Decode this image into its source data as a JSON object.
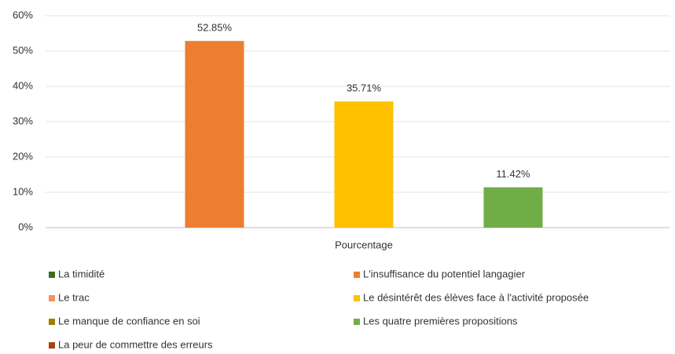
{
  "chart_data": {
    "type": "bar",
    "categories": [
      "Pourcentage"
    ],
    "series": [
      {
        "name": "La timidité",
        "color": "#3b6b22",
        "values": [
          0
        ],
        "value_labels": [
          null
        ]
      },
      {
        "name": "L'insuffisance du potentiel langagier",
        "color": "#ed7d31",
        "values": [
          52.85
        ],
        "value_labels": [
          "52.85%"
        ]
      },
      {
        "name": "Le trac",
        "color": "#f4925a",
        "values": [
          0
        ],
        "value_labels": [
          null
        ]
      },
      {
        "name": "Le désintérêt des élèves face à l'activité proposée",
        "color": "#ffc000",
        "values": [
          35.71
        ],
        "value_labels": [
          "35.71%"
        ]
      },
      {
        "name": "Le manque de confiance en soi",
        "color": "#9e8000",
        "values": [
          0
        ],
        "value_labels": [
          null
        ]
      },
      {
        "name": "Les quatre premières propositions",
        "color": "#70ad47",
        "values": [
          11.42
        ],
        "value_labels": [
          "11.42%"
        ]
      },
      {
        "name": "La peur de commettre des erreurs",
        "color": "#a9420f",
        "values": [
          0
        ],
        "value_labels": [
          null
        ]
      }
    ],
    "ylim": [
      0,
      60
    ],
    "yticks": [
      {
        "value": 0,
        "label": "0%"
      },
      {
        "value": 10,
        "label": "10%"
      },
      {
        "value": 20,
        "label": "20%"
      },
      {
        "value": 30,
        "label": "30%"
      },
      {
        "value": 40,
        "label": "40%"
      },
      {
        "value": 50,
        "label": "50%"
      },
      {
        "value": 60,
        "label": "60%"
      }
    ],
    "grid": true
  }
}
